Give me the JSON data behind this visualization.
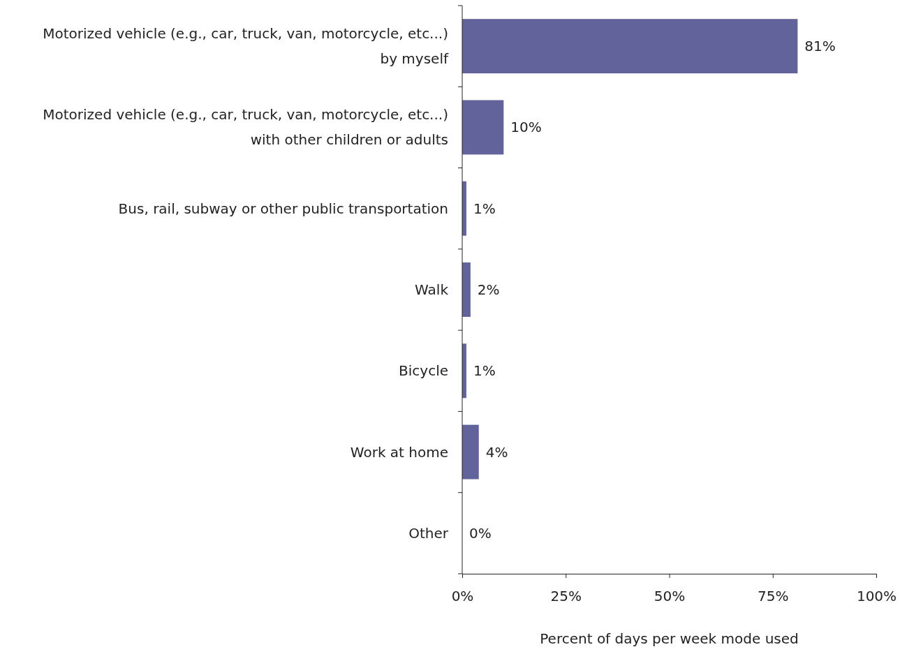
{
  "chart_data": {
    "type": "bar",
    "orientation": "horizontal",
    "xlabel": "Percent of days per week mode used",
    "categories": [
      "Motorized vehicle (e.g., car, truck, van, motorcycle, etc...) by myself",
      "Motorized vehicle (e.g., car, truck, van, motorcycle, etc...) with other children or adults",
      "Bus, rail, subway or other public transportation",
      "Walk",
      "Bicycle",
      "Work at home",
      "Other"
    ],
    "values": [
      81,
      10,
      1,
      2,
      1,
      4,
      0
    ],
    "value_labels": [
      "81%",
      "10%",
      "1%",
      "2%",
      "1%",
      "4%",
      "0%"
    ],
    "color": "#62639a",
    "xlim": [
      0,
      100
    ],
    "xticks": [
      {
        "value": 0,
        "label": "0%"
      },
      {
        "value": 25,
        "label": "25%"
      },
      {
        "value": 50,
        "label": "50%"
      },
      {
        "value": 75,
        "label": "75%"
      },
      {
        "value": 100,
        "label": "100%"
      }
    ],
    "grid": false
  }
}
